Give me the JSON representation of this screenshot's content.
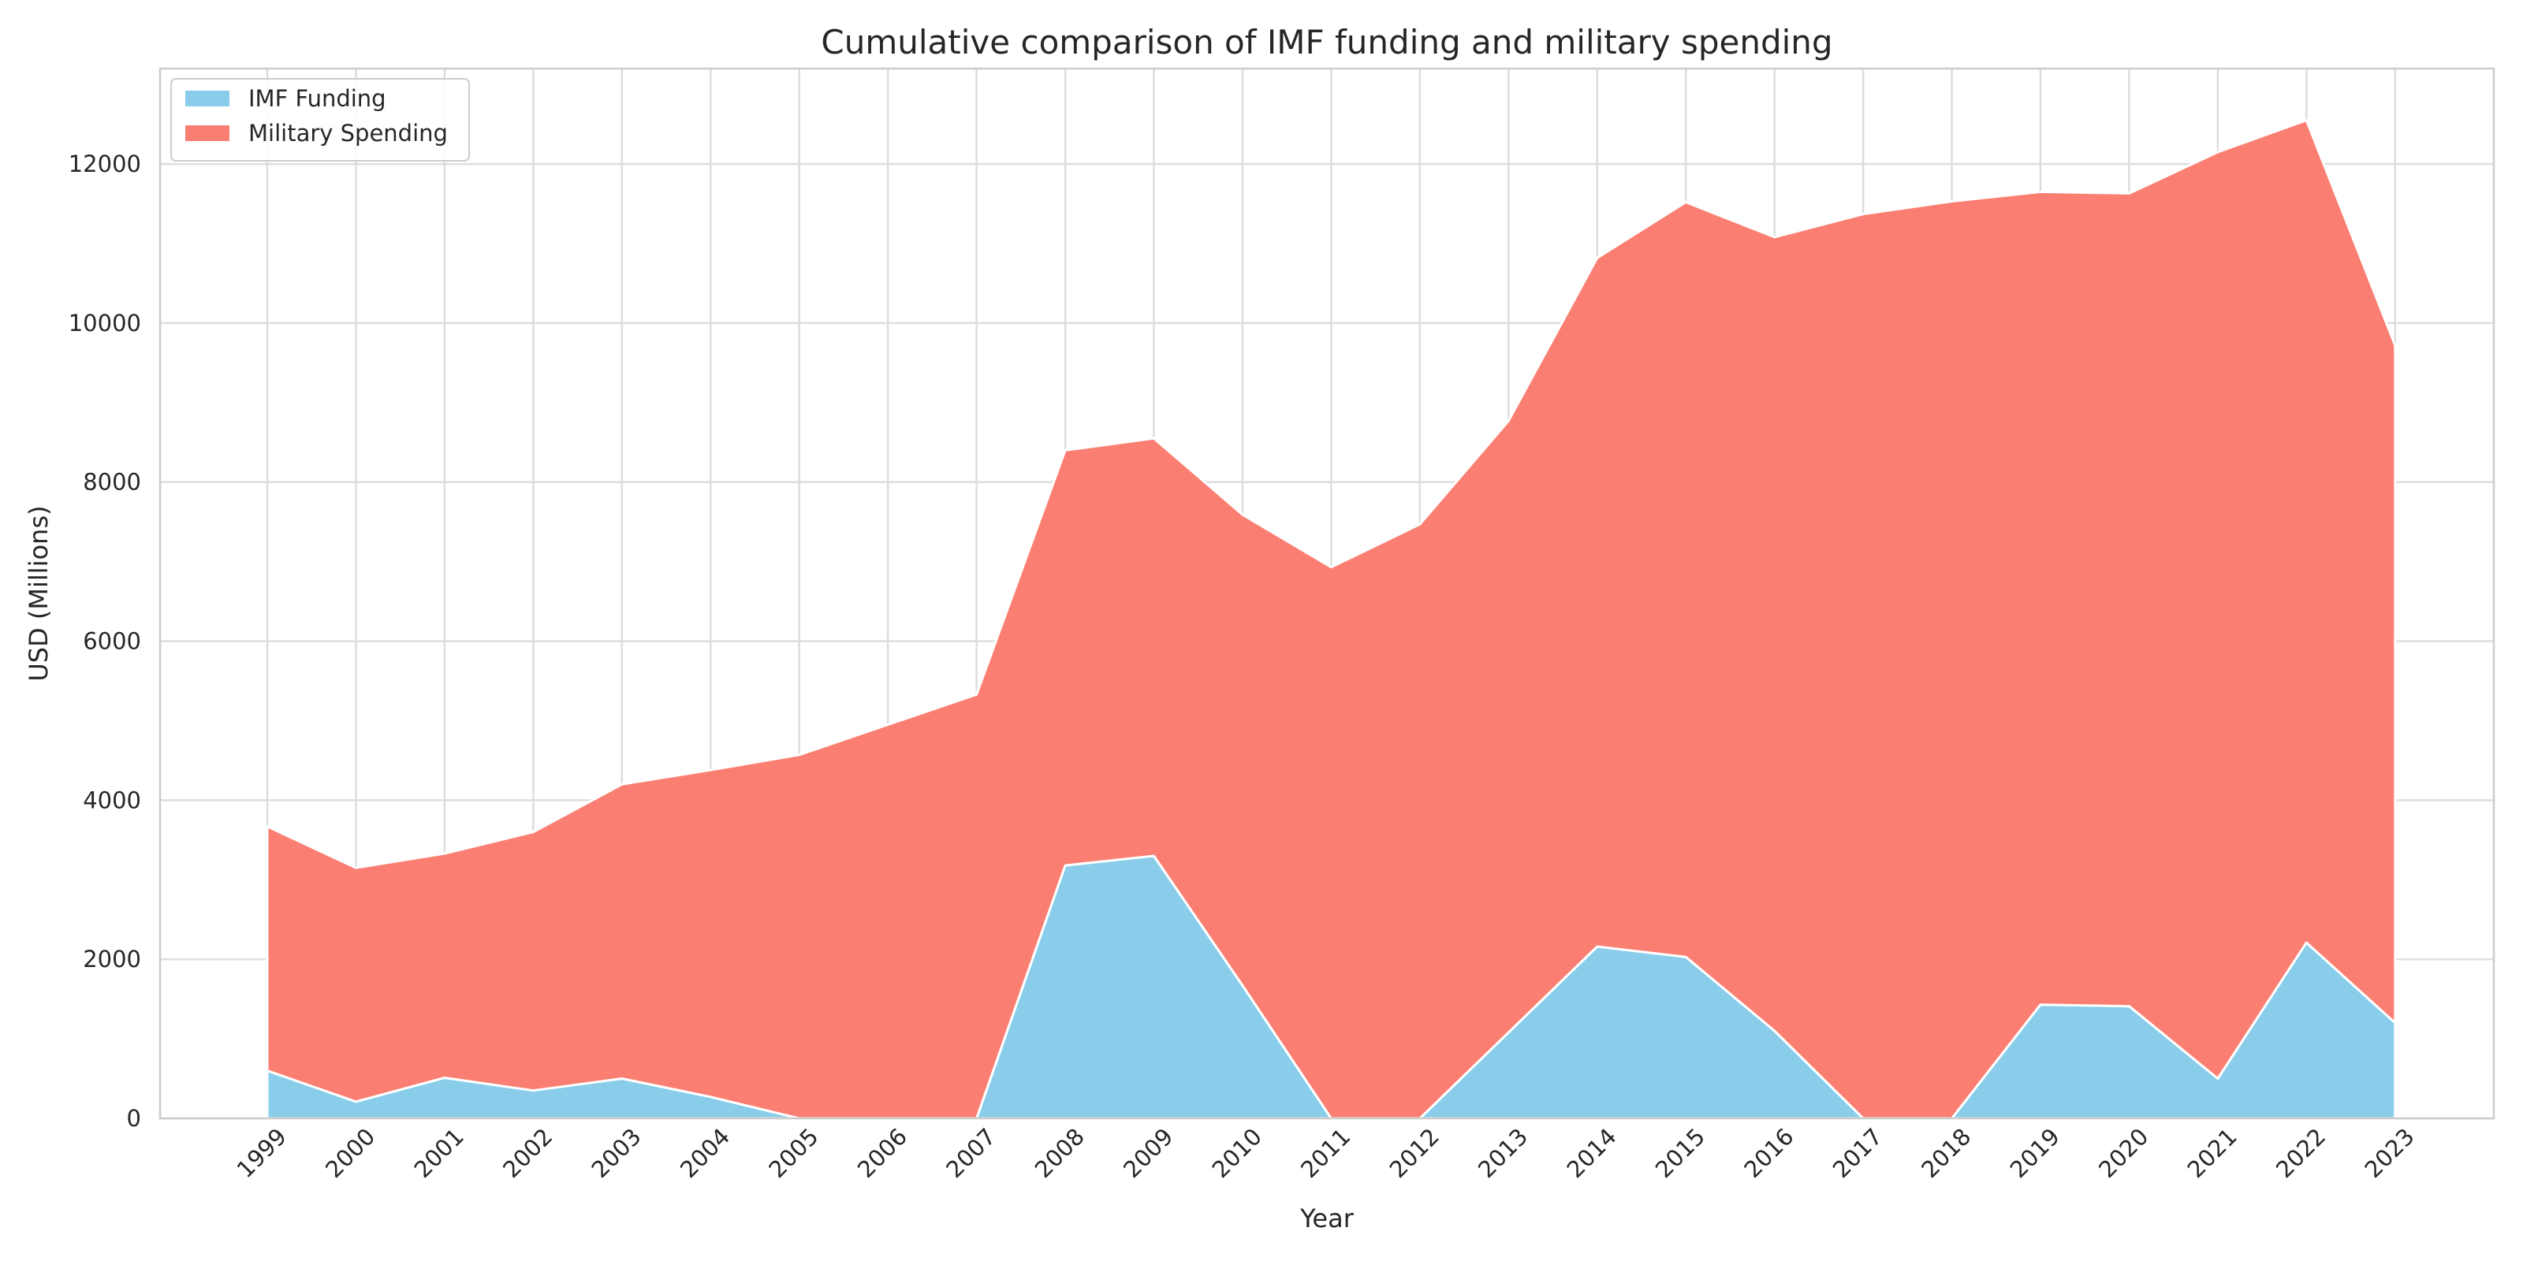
{
  "chart_data": {
    "type": "area",
    "stacked": true,
    "title": "Cumulative comparison of IMF funding and military spending",
    "xlabel": "Year",
    "ylabel": "USD (Millions)",
    "x": [
      "1999",
      "2000",
      "2001",
      "2002",
      "2003",
      "2004",
      "2005",
      "2006",
      "2007",
      "2008",
      "2009",
      "2010",
      "2011",
      "2012",
      "2013",
      "2014",
      "2015",
      "2016",
      "2017",
      "2018",
      "2019",
      "2020",
      "2021",
      "2022",
      "2023"
    ],
    "series": [
      {
        "name": "IMF Funding",
        "color": "#89cdea",
        "values": [
          600,
          210,
          510,
          350,
          500,
          270,
          0,
          0,
          0,
          3180,
          3300,
          1670,
          0,
          0,
          1080,
          2160,
          2030,
          1100,
          0,
          0,
          1430,
          1410,
          500,
          2210,
          1200
        ]
      },
      {
        "name": "Military Spending",
        "color": "#fa7f72",
        "values": [
          3070,
          2940,
          2820,
          3250,
          3700,
          4110,
          4570,
          4950,
          5330,
          5220,
          5250,
          5920,
          6930,
          7470,
          7690,
          8660,
          9490,
          9980,
          11370,
          11530,
          10220,
          10220,
          11650,
          10340,
          8520
        ]
      }
    ],
    "yticks": [
      0,
      2000,
      4000,
      6000,
      8000,
      10000,
      12000
    ],
    "ylim": [
      0,
      13200
    ],
    "grid": true,
    "legend_position": "top-left"
  }
}
